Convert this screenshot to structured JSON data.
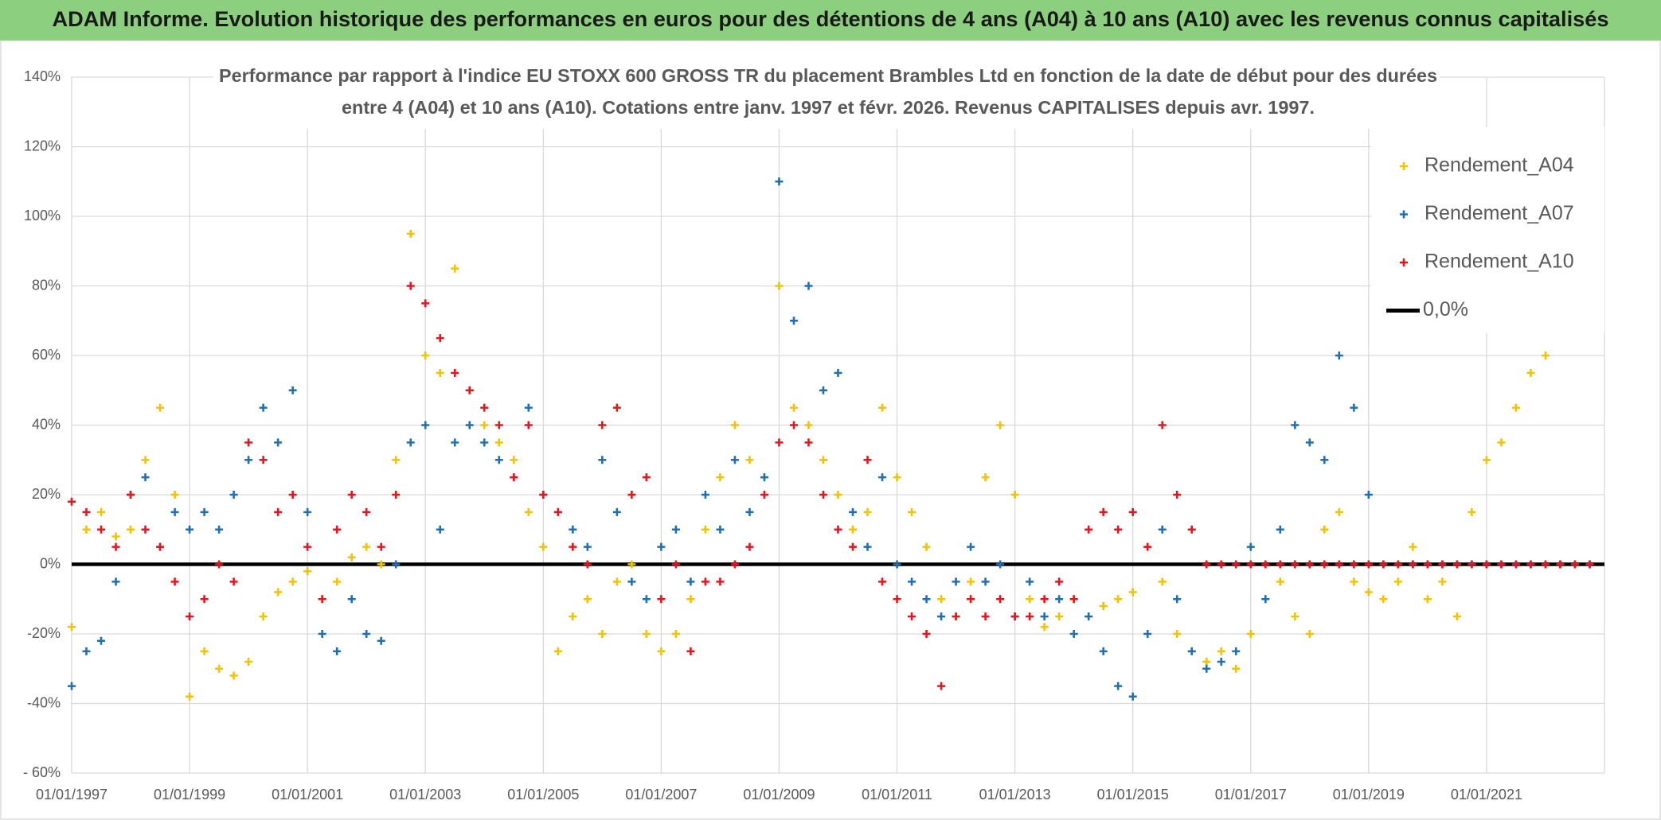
{
  "chart_data": {
    "type": "scatter",
    "header": "ADAM Informe. Evolution historique des performances en euros pour des détentions de 4 ans (A04) à 10 ans (A10) avec les revenus connus capitalisés",
    "title": [
      "Performance par rapport à l'indice EU STOXX 600 GROSS TR  du placement Brambles Ltd en fonction de la date de début pour des durées",
      "entre 4 (A04) et 10 ans (A10). Cotations entre janv. 1997 et févr. 2026. Revenus CAPITALISES depuis avr. 1997."
    ],
    "x": [
      1997,
      1997.25,
      1997.5,
      1997.75,
      1998,
      1998.25,
      1998.5,
      1998.75,
      1999,
      1999.25,
      1999.5,
      1999.75,
      2000,
      2000.25,
      2000.5,
      2000.75,
      2001,
      2001.25,
      2001.5,
      2001.75,
      2002,
      2002.25,
      2002.5,
      2002.75,
      2003,
      2003.25,
      2003.5,
      2003.75,
      2004,
      2004.25,
      2004.5,
      2004.75,
      2005,
      2005.25,
      2005.5,
      2005.75,
      2006,
      2006.25,
      2006.5,
      2006.75,
      2007,
      2007.25,
      2007.5,
      2007.75,
      2008,
      2008.25,
      2008.5,
      2008.75,
      2009,
      2009.25,
      2009.5,
      2009.75,
      2010,
      2010.25,
      2010.5,
      2010.75,
      2011,
      2011.25,
      2011.5,
      2011.75,
      2012,
      2012.25,
      2012.5,
      2012.75,
      2013,
      2013.25,
      2013.5,
      2013.75,
      2014,
      2014.25,
      2014.5,
      2014.75,
      2015,
      2015.25,
      2015.5,
      2015.75,
      2016,
      2016.25,
      2016.5,
      2016.75,
      2017,
      2017.25,
      2017.5,
      2017.75,
      2018,
      2018.25,
      2018.5,
      2018.75,
      2019,
      2019.25,
      2019.5,
      2019.75,
      2020,
      2020.25,
      2020.5,
      2020.75,
      2021,
      2021.25,
      2021.5,
      2021.75,
      2022,
      2022.25,
      2022.5,
      2022.75
    ],
    "series": [
      {
        "name": "Rendement_A04",
        "color": "#f5c200",
        "values": [
          -18,
          10,
          15,
          8,
          10,
          30,
          45,
          20,
          -38,
          -25,
          -30,
          -32,
          -28,
          -15,
          -8,
          -5,
          -2,
          -10,
          -5,
          2,
          5,
          0,
          30,
          95,
          60,
          55,
          85,
          50,
          40,
          35,
          30,
          15,
          5,
          -25,
          -15,
          -10,
          -20,
          -5,
          0,
          -20,
          -25,
          -20,
          -10,
          10,
          25,
          40,
          30,
          25,
          80,
          45,
          40,
          30,
          20,
          10,
          15,
          45,
          25,
          15,
          5,
          -10,
          -15,
          -5,
          25,
          40,
          20,
          -10,
          -18,
          -15,
          -10,
          -15,
          -12,
          -10,
          -8,
          5,
          -5,
          -20,
          -25,
          -28,
          -25,
          -30,
          -20,
          -10,
          -5,
          -15,
          -20,
          10,
          15,
          -5,
          -8,
          -10,
          -5,
          5,
          -10,
          -5,
          -15,
          15,
          30,
          35,
          45,
          55,
          60,
          0,
          0,
          0
        ]
      },
      {
        "name": "Rendement_A07",
        "color": "#1f6fb5",
        "values": [
          -35,
          -25,
          -22,
          -5,
          20,
          25,
          5,
          15,
          10,
          15,
          10,
          20,
          30,
          45,
          35,
          50,
          15,
          -20,
          -25,
          -10,
          -20,
          -22,
          0,
          35,
          40,
          10,
          35,
          40,
          35,
          30,
          25,
          45,
          20,
          15,
          10,
          5,
          30,
          15,
          -5,
          -10,
          5,
          10,
          -5,
          20,
          10,
          30,
          15,
          25,
          110,
          70,
          80,
          50,
          55,
          15,
          5,
          25,
          0,
          -5,
          -10,
          -15,
          -5,
          5,
          -5,
          0,
          -15,
          -5,
          -15,
          -10,
          -20,
          -15,
          -25,
          -35,
          -38,
          -20,
          10,
          -10,
          -25,
          -30,
          -28,
          -25,
          5,
          -10,
          10,
          40,
          35,
          30,
          60,
          45,
          20,
          0,
          0,
          0,
          0,
          0,
          0,
          0,
          0,
          0,
          0,
          0,
          0,
          0,
          0,
          0
        ]
      },
      {
        "name": "Rendement_A10",
        "color": "#e8141c",
        "values": [
          18,
          15,
          10,
          5,
          20,
          10,
          5,
          -5,
          -15,
          -10,
          0,
          -5,
          35,
          30,
          15,
          20,
          5,
          -10,
          10,
          20,
          15,
          5,
          20,
          80,
          75,
          65,
          55,
          50,
          45,
          40,
          25,
          40,
          20,
          15,
          5,
          0,
          40,
          45,
          20,
          25,
          -10,
          0,
          -25,
          -5,
          -5,
          0,
          5,
          20,
          35,
          40,
          35,
          20,
          10,
          5,
          30,
          -5,
          -10,
          -15,
          -20,
          -35,
          -15,
          -10,
          -15,
          -10,
          -15,
          -15,
          -10,
          -5,
          -10,
          10,
          15,
          10,
          15,
          5,
          40,
          20,
          10,
          0,
          0,
          0,
          0,
          0,
          0,
          0,
          0,
          0,
          0,
          0,
          0,
          0,
          0,
          0,
          0,
          0,
          0,
          0,
          0,
          0,
          0,
          0,
          0,
          0,
          0,
          0
        ]
      }
    ],
    "reference_line": {
      "name": "0,0%",
      "value": 0,
      "color": "#000000"
    },
    "xlim": [
      1997,
      2023
    ],
    "xticks": [
      {
        "value": 1997,
        "label": "01/01/1997"
      },
      {
        "value": 1999,
        "label": "01/01/1999"
      },
      {
        "value": 2001,
        "label": "01/01/2001"
      },
      {
        "value": 2003,
        "label": "01/01/2003"
      },
      {
        "value": 2005,
        "label": "01/01/2005"
      },
      {
        "value": 2007,
        "label": "01/01/2007"
      },
      {
        "value": 2009,
        "label": "01/01/2009"
      },
      {
        "value": 2011,
        "label": "01/01/2011"
      },
      {
        "value": 2013,
        "label": "01/01/2013"
      },
      {
        "value": 2015,
        "label": "01/01/2015"
      },
      {
        "value": 2017,
        "label": "01/01/2017"
      },
      {
        "value": 2019,
        "label": "01/01/2019"
      },
      {
        "value": 2021,
        "label": "01/01/2021"
      }
    ],
    "ylim": [
      -60,
      140
    ],
    "yticks": [
      {
        "value": -60,
        "label": "- 60%"
      },
      {
        "value": -40,
        "label": "-40%"
      },
      {
        "value": -20,
        "label": "-20%"
      },
      {
        "value": 0,
        "label": "0%"
      },
      {
        "value": 20,
        "label": "20%"
      },
      {
        "value": 40,
        "label": "40%"
      },
      {
        "value": 60,
        "label": "60%"
      },
      {
        "value": 80,
        "label": "80%"
      },
      {
        "value": 100,
        "label": "100%"
      },
      {
        "value": 120,
        "label": "120%"
      },
      {
        "value": 140,
        "label": "140%"
      }
    ],
    "grid": true
  }
}
